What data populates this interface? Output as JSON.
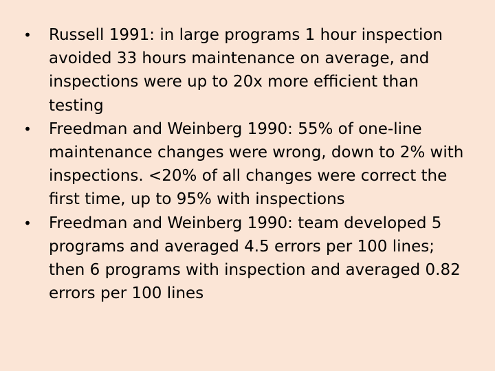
{
  "slide": {
    "bullet_symbol": "•",
    "bullets": [
      "Russell 1991: in large programs 1 hour inspection avoided 33 hours maintenance on average, and inspections were up to 20x more efficient than testing",
      "Freedman and Weinberg 1990: 55% of one-line maintenance changes were wrong, down to 2% with inspections. <20% of all changes were correct the first time, up to 95% with inspections",
      "Freedman and Weinberg 1990: team developed 5 programs and averaged 4.5 errors per 100 lines; then 6 programs with inspection and averaged 0.82 errors per 100 lines"
    ]
  },
  "colors": {
    "background": "#fbe5d6",
    "text": "#000000"
  }
}
